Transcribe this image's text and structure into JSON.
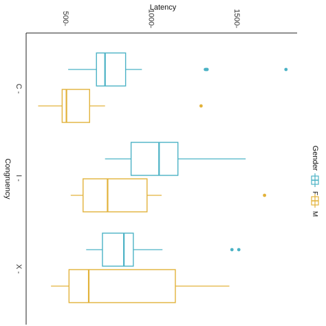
{
  "chart_data": {
    "type": "box",
    "orientation": "horizontal",
    "xlabel": "Latency",
    "ylabel": "Congruency",
    "xlim": [
      300,
      1880
    ],
    "x_ticks": [
      500,
      1000,
      1500
    ],
    "x_tick_labels": [
      "500-",
      "1000-",
      "1500-"
    ],
    "categories": [
      "C",
      "I",
      "X"
    ],
    "category_tick_labels": [
      "C -",
      "I -",
      "X -"
    ],
    "legend": {
      "title": "Gender",
      "placement": "right",
      "entries": [
        {
          "label": "F",
          "color": "#4BB2C5"
        },
        {
          "label": "M",
          "color": "#E2B23A"
        }
      ]
    },
    "series": [
      {
        "name": "F",
        "color": "#4BB2C5",
        "boxes": [
          {
            "category": "C",
            "whisker_low": 545,
            "q1": 710,
            "median": 760,
            "q3": 880,
            "whisker_high": 975,
            "outliers": [
              1345,
              1352,
              1355,
              1815
            ]
          },
          {
            "category": "I",
            "whisker_low": 760,
            "q1": 912,
            "median": 1075,
            "q3": 1185,
            "whisker_high": 1580,
            "outliers": []
          },
          {
            "category": "X",
            "whisker_low": 650,
            "q1": 745,
            "median": 870,
            "q3": 925,
            "whisker_high": 1095,
            "outliers": [
              1500,
              1540
            ]
          }
        ]
      },
      {
        "name": "M",
        "color": "#E2B23A",
        "boxes": [
          {
            "category": "C",
            "whisker_low": 370,
            "q1": 510,
            "median": 535,
            "q3": 670,
            "whisker_high": 760,
            "outliers": [
              1320
            ]
          },
          {
            "category": "I",
            "whisker_low": 560,
            "q1": 632,
            "median": 775,
            "q3": 1005,
            "whisker_high": 1090,
            "outliers": [
              1690
            ]
          },
          {
            "category": "X",
            "whisker_low": 445,
            "q1": 550,
            "median": 665,
            "q3": 1170,
            "whisker_high": 1485,
            "outliers": []
          }
        ]
      }
    ]
  }
}
